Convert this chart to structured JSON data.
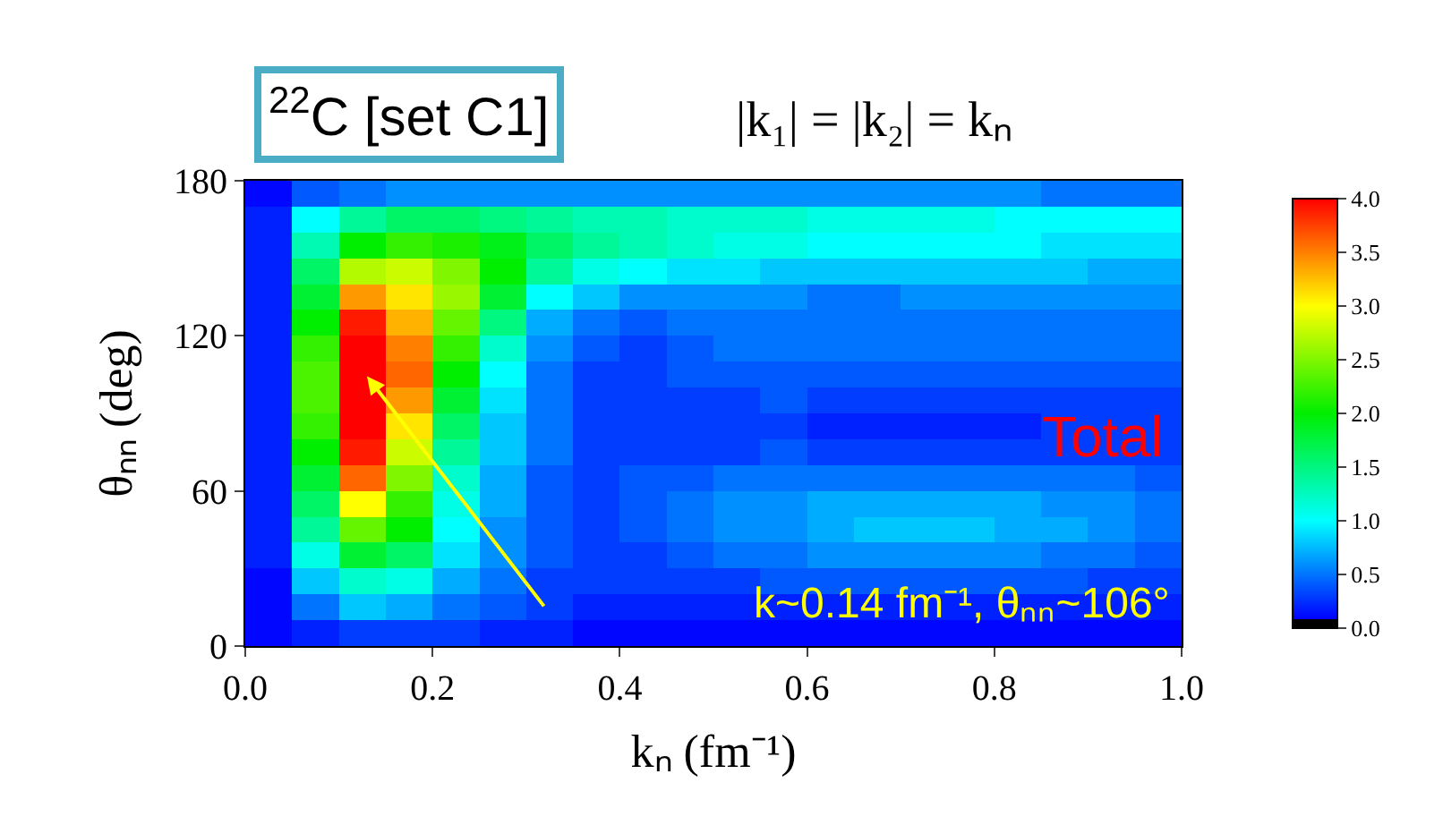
{
  "chart_data": {
    "type": "heatmap",
    "title": "$^{22}$C [set C1]",
    "subtitle": "|k₁| = |k₂| = kₙ",
    "xlabel": "kₙ (fm⁻¹)",
    "ylabel": "θₙₙ (deg)",
    "x": [
      0.025,
      0.075,
      0.125,
      0.175,
      0.225,
      0.275,
      0.325,
      0.375,
      0.425,
      0.475,
      0.525,
      0.575,
      0.625,
      0.675,
      0.725,
      0.775,
      0.825,
      0.875,
      0.925,
      0.975
    ],
    "y": [
      175,
      165,
      155,
      145,
      135,
      125,
      115,
      105,
      95,
      85,
      75,
      65,
      55,
      45,
      35,
      25,
      15,
      5
    ],
    "cells": [
      [
        0.1,
        0.4,
        0.5,
        0.6,
        0.6,
        0.6,
        0.6,
        0.6,
        0.6,
        0.6,
        0.6,
        0.6,
        0.6,
        0.6,
        0.6,
        0.6,
        0.6,
        0.5,
        0.5,
        0.5
      ],
      [
        0.2,
        1.0,
        1.4,
        1.6,
        1.6,
        1.5,
        1.4,
        1.3,
        1.3,
        1.2,
        1.2,
        1.2,
        1.1,
        1.1,
        1.1,
        1.1,
        1.0,
        1.0,
        1.0,
        1.0
      ],
      [
        0.2,
        1.3,
        2.0,
        2.2,
        2.1,
        1.9,
        1.6,
        1.4,
        1.3,
        1.2,
        1.1,
        1.1,
        1.0,
        1.0,
        1.0,
        1.0,
        1.0,
        0.9,
        0.9,
        0.9
      ],
      [
        0.2,
        1.6,
        2.7,
        2.8,
        2.5,
        2.0,
        1.4,
        1.1,
        1.0,
        0.9,
        0.9,
        0.8,
        0.8,
        0.8,
        0.8,
        0.8,
        0.8,
        0.8,
        0.7,
        0.7
      ],
      [
        0.2,
        1.8,
        3.4,
        3.1,
        2.6,
        1.8,
        1.0,
        0.8,
        0.6,
        0.6,
        0.6,
        0.6,
        0.5,
        0.5,
        0.6,
        0.6,
        0.6,
        0.6,
        0.6,
        0.6
      ],
      [
        0.2,
        2.0,
        3.9,
        3.3,
        2.4,
        1.5,
        0.7,
        0.5,
        0.4,
        0.5,
        0.5,
        0.5,
        0.5,
        0.5,
        0.5,
        0.5,
        0.5,
        0.5,
        0.5,
        0.5
      ],
      [
        0.2,
        2.2,
        4.0,
        3.5,
        2.2,
        1.2,
        0.6,
        0.4,
        0.3,
        0.4,
        0.5,
        0.5,
        0.5,
        0.5,
        0.5,
        0.5,
        0.5,
        0.5,
        0.5,
        0.5
      ],
      [
        0.2,
        2.3,
        4.0,
        3.6,
        2.0,
        1.0,
        0.5,
        0.3,
        0.3,
        0.4,
        0.4,
        0.4,
        0.4,
        0.4,
        0.4,
        0.4,
        0.4,
        0.4,
        0.4,
        0.4
      ],
      [
        0.2,
        2.3,
        4.0,
        3.4,
        1.8,
        0.9,
        0.5,
        0.3,
        0.3,
        0.3,
        0.3,
        0.4,
        0.3,
        0.3,
        0.3,
        0.3,
        0.3,
        0.3,
        0.3,
        0.3
      ],
      [
        0.2,
        2.2,
        4.0,
        3.1,
        1.6,
        0.8,
        0.5,
        0.3,
        0.3,
        0.3,
        0.3,
        0.3,
        0.2,
        0.2,
        0.2,
        0.2,
        0.2,
        0.3,
        0.3,
        0.3
      ],
      [
        0.2,
        2.0,
        3.9,
        2.8,
        1.4,
        0.8,
        0.5,
        0.3,
        0.3,
        0.3,
        0.3,
        0.4,
        0.3,
        0.3,
        0.3,
        0.3,
        0.3,
        0.3,
        0.3,
        0.3
      ],
      [
        0.2,
        1.8,
        3.6,
        2.5,
        1.2,
        0.7,
        0.4,
        0.3,
        0.4,
        0.4,
        0.5,
        0.5,
        0.5,
        0.5,
        0.5,
        0.5,
        0.5,
        0.5,
        0.5,
        0.4
      ],
      [
        0.2,
        1.6,
        3.0,
        2.2,
        1.1,
        0.7,
        0.4,
        0.3,
        0.4,
        0.5,
        0.6,
        0.6,
        0.7,
        0.7,
        0.7,
        0.7,
        0.7,
        0.6,
        0.6,
        0.5
      ],
      [
        0.2,
        1.4,
        2.4,
        2.0,
        1.0,
        0.6,
        0.4,
        0.3,
        0.4,
        0.5,
        0.6,
        0.6,
        0.7,
        0.8,
        0.8,
        0.8,
        0.7,
        0.7,
        0.6,
        0.5
      ],
      [
        0.2,
        1.1,
        1.8,
        1.6,
        0.9,
        0.6,
        0.4,
        0.3,
        0.3,
        0.4,
        0.5,
        0.5,
        0.6,
        0.6,
        0.6,
        0.6,
        0.6,
        0.5,
        0.5,
        0.4
      ],
      [
        0.1,
        0.8,
        1.2,
        1.1,
        0.7,
        0.5,
        0.3,
        0.3,
        0.3,
        0.3,
        0.3,
        0.4,
        0.4,
        0.4,
        0.4,
        0.4,
        0.4,
        0.4,
        0.3,
        0.3
      ],
      [
        0.1,
        0.5,
        0.8,
        0.7,
        0.5,
        0.4,
        0.3,
        0.2,
        0.2,
        0.2,
        0.2,
        0.2,
        0.2,
        0.2,
        0.2,
        0.2,
        0.2,
        0.2,
        0.2,
        0.2
      ],
      [
        0.1,
        0.2,
        0.3,
        0.3,
        0.3,
        0.2,
        0.2,
        0.1,
        0.1,
        0.1,
        0.1,
        0.1,
        0.1,
        0.1,
        0.1,
        0.1,
        0.1,
        0.1,
        0.1,
        0.1
      ]
    ],
    "xlim": [
      0,
      1
    ],
    "ylim": [
      0,
      180
    ],
    "xticks": [
      {
        "value": 0,
        "label": "0.0"
      },
      {
        "value": 0.2,
        "label": "0.2"
      },
      {
        "value": 0.4,
        "label": "0.4"
      },
      {
        "value": 0.6,
        "label": "0.6"
      },
      {
        "value": 0.8,
        "label": "0.8"
      },
      {
        "value": 1,
        "label": "1.0"
      }
    ],
    "yticks": [
      0,
      60,
      120,
      180
    ],
    "clim": [
      0,
      4
    ],
    "cticks": [
      {
        "value": 0,
        "label": "0.0"
      },
      {
        "value": 0.5,
        "label": "0.5"
      },
      {
        "value": 1,
        "label": "1.0"
      },
      {
        "value": 1.5,
        "label": "1.5"
      },
      {
        "value": 2,
        "label": "2.0"
      },
      {
        "value": 2.5,
        "label": "2.5"
      },
      {
        "value": 3,
        "label": "3.0"
      },
      {
        "value": 3.5,
        "label": "3.5"
      },
      {
        "value": 4,
        "label": "4.0"
      }
    ],
    "annotations": [
      "Total",
      "k~0.14 fm⁻¹, θₙₙ~106°"
    ]
  }
}
